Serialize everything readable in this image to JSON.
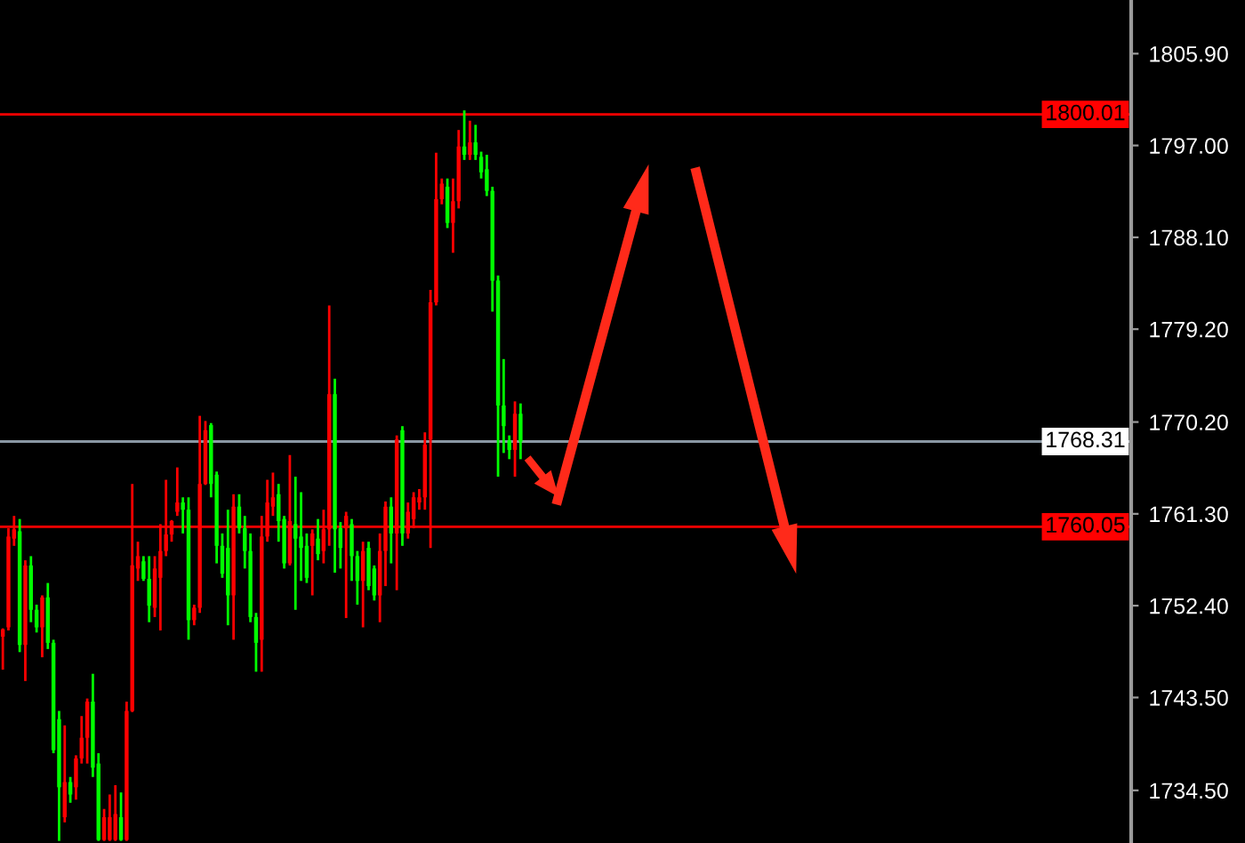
{
  "chart_data": {
    "type": "candlestick",
    "categories": [
      null,
      null,
      null,
      null,
      null,
      null,
      null,
      null,
      null,
      null,
      null,
      null,
      null,
      null,
      null,
      null,
      null,
      null,
      null,
      null,
      null,
      null,
      null,
      null,
      null,
      null,
      null,
      null,
      null,
      null,
      null,
      null,
      null,
      null,
      null,
      null,
      null,
      null,
      null,
      null,
      null,
      null,
      null,
      null,
      null,
      null,
      null,
      null,
      null,
      null,
      null,
      null,
      null,
      null,
      null,
      null,
      null,
      null,
      null,
      null,
      null,
      null,
      null,
      null,
      null,
      null,
      null,
      null,
      null,
      null,
      null,
      null,
      null,
      null,
      null,
      null,
      null,
      null,
      null,
      null,
      null,
      null,
      null,
      null,
      null,
      null,
      null,
      null,
      null,
      null,
      null,
      null,
      null,
      null,
      null,
      null,
      null,
      null,
      null,
      null,
      null,
      null,
      null,
      null,
      null,
      null,
      null,
      null,
      null,
      null,
      null,
      null,
      null,
      null,
      null,
      null,
      null,
      null,
      null,
      null,
      null,
      null,
      null,
      null,
      null,
      null,
      null,
      null,
      null,
      null,
      null,
      null,
      null,
      null,
      null,
      null,
      null,
      null,
      null,
      null,
      null,
      null,
      null,
      null,
      null,
      null,
      null,
      null,
      null,
      null,
      null,
      null,
      null,
      null,
      null,
      null,
      null,
      null,
      null,
      null,
      null,
      null,
      null,
      null,
      null,
      null,
      null,
      null,
      null,
      null,
      null,
      null,
      null,
      null,
      null,
      null,
      null,
      null,
      null,
      null,
      null,
      null,
      null,
      null,
      null,
      null,
      null,
      null,
      null,
      null,
      null,
      null,
      null,
      null,
      null,
      null,
      null,
      null,
      null,
      null,
      null
    ],
    "ohlc": [
      [
        1749.4,
        1750.2,
        1746.2,
        1750.1
      ],
      [
        1750.3,
        1759.9,
        1750.0,
        1759.1
      ],
      [
        1758.9,
        1761.1,
        1758.2,
        1759.8
      ],
      [
        1759.6,
        1760.8,
        1747.9,
        1748.6
      ],
      [
        1748.6,
        1756.8,
        1745.1,
        1756.3
      ],
      [
        1756.3,
        1757.2,
        1750.8,
        1752.0
      ],
      [
        1752.0,
        1752.5,
        1749.8,
        1750.3
      ],
      [
        1750.3,
        1753.4,
        1747.4,
        1753.2
      ],
      [
        1753.2,
        1754.6,
        1748.2,
        1748.8
      ],
      [
        1748.8,
        1749.1,
        1738.1,
        1738.4
      ],
      [
        1741.4,
        1742.2,
        1729.6,
        1734.8
      ],
      [
        1731.9,
        1740.8,
        1731.4,
        1735.3
      ],
      [
        1735.3,
        1735.8,
        1733.3,
        1734.1
      ],
      [
        1734.8,
        1737.9,
        1733.6,
        1737.6
      ],
      [
        1737.6,
        1741.7,
        1737.1,
        1739.6
      ],
      [
        1739.6,
        1743.4,
        1737.1,
        1743.1
      ],
      [
        1743.1,
        1745.8,
        1735.8,
        1736.7
      ],
      [
        1737.1,
        1738.1,
        1729.6,
        1729.7
      ],
      [
        1729.7,
        1732.7,
        1729.6,
        1731.9
      ],
      [
        1729.7,
        1734.1,
        1729.6,
        1731.9
      ],
      [
        1729.7,
        1735.0,
        1729.6,
        1732.2
      ],
      [
        1731.9,
        1734.3,
        1729.6,
        1729.7
      ],
      [
        1729.7,
        1743.1,
        1729.6,
        1742.2
      ],
      [
        1742.2,
        1764.2,
        1742.1,
        1756.3
      ],
      [
        1756.0,
        1758.6,
        1754.8,
        1757.2
      ],
      [
        1756.7,
        1757.2,
        1754.8,
        1755.0
      ],
      [
        1755.0,
        1757.2,
        1750.8,
        1752.4
      ],
      [
        1752.2,
        1757.2,
        1751.3,
        1756.0
      ],
      [
        1755.1,
        1760.3,
        1750.0,
        1757.7
      ],
      [
        1757.7,
        1764.6,
        1757.2,
        1759.3
      ],
      [
        1759.3,
        1760.7,
        1758.6,
        1760.6
      ],
      [
        1761.5,
        1765.8,
        1761.1,
        1762.4
      ],
      [
        1762.4,
        1762.9,
        1759.4,
        1761.7
      ],
      [
        1761.7,
        1762.9,
        1749.1,
        1751.0
      ],
      [
        1751.0,
        1752.5,
        1750.5,
        1752.2
      ],
      [
        1752.2,
        1770.8,
        1751.7,
        1764.2
      ],
      [
        1764.2,
        1770.3,
        1764.1,
        1769.4
      ],
      [
        1769.9,
        1770.1,
        1762.9,
        1764.2
      ],
      [
        1765.1,
        1765.4,
        1756.5,
        1758.2
      ],
      [
        1758.2,
        1759.4,
        1755.1,
        1755.5
      ],
      [
        1758.0,
        1761.7,
        1750.5,
        1753.4
      ],
      [
        1753.4,
        1763.2,
        1749.1,
        1762.0
      ],
      [
        1762.0,
        1763.2,
        1759.4,
        1759.9
      ],
      [
        1759.9,
        1761.1,
        1756.0,
        1757.7
      ],
      [
        1757.7,
        1759.4,
        1750.8,
        1751.3
      ],
      [
        1751.3,
        1751.7,
        1746.0,
        1748.8
      ],
      [
        1749.1,
        1761.1,
        1746.0,
        1759.1
      ],
      [
        1759.1,
        1764.6,
        1758.6,
        1762.4
      ],
      [
        1762.0,
        1765.3,
        1761.1,
        1762.9
      ],
      [
        1763.2,
        1764.2,
        1758.6,
        1760.6
      ],
      [
        1760.8,
        1761.1,
        1756.0,
        1756.5
      ],
      [
        1756.5,
        1767.0,
        1756.3,
        1760.6
      ],
      [
        1760.3,
        1764.9,
        1752.0,
        1758.9
      ],
      [
        1759.1,
        1763.4,
        1754.8,
        1758.0
      ],
      [
        1758.2,
        1759.4,
        1754.6,
        1755.1
      ],
      [
        1758.2,
        1759.8,
        1753.4,
        1759.4
      ],
      [
        1758.9,
        1760.8,
        1756.8,
        1757.4
      ],
      [
        1757.7,
        1761.7,
        1756.5,
        1759.8
      ],
      [
        1759.8,
        1781.5,
        1758.2,
        1772.9
      ],
      [
        1772.9,
        1774.4,
        1755.6,
        1759.8
      ],
      [
        1759.9,
        1760.5,
        1756.0,
        1758.0
      ],
      [
        1759.9,
        1761.5,
        1751.2,
        1761.1
      ],
      [
        1760.3,
        1760.8,
        1754.8,
        1757.2
      ],
      [
        1757.2,
        1757.7,
        1752.5,
        1754.8
      ],
      [
        1754.8,
        1758.6,
        1750.3,
        1757.7
      ],
      [
        1758.0,
        1758.6,
        1753.9,
        1754.3
      ],
      [
        1756.0,
        1756.3,
        1752.9,
        1753.4
      ],
      [
        1753.4,
        1759.4,
        1750.8,
        1757.7
      ],
      [
        1757.7,
        1762.5,
        1754.3,
        1762.0
      ],
      [
        1762.0,
        1762.9,
        1756.5,
        1759.4
      ],
      [
        1759.4,
        1768.9,
        1753.9,
        1768.5
      ],
      [
        1769.4,
        1769.8,
        1758.2,
        1759.4
      ],
      [
        1759.4,
        1762.4,
        1758.9,
        1761.5
      ],
      [
        1760.8,
        1763.4,
        1759.9,
        1762.9
      ],
      [
        1762.4,
        1763.7,
        1761.7,
        1762.9
      ],
      [
        1762.9,
        1769.2,
        1761.7,
        1768.0
      ],
      [
        1768.5,
        1783.0,
        1758.0,
        1781.8
      ],
      [
        1781.8,
        1796.3,
        1781.5,
        1791.8
      ],
      [
        1791.8,
        1793.8,
        1791.3,
        1793.3
      ],
      [
        1793.0,
        1793.8,
        1789.0,
        1789.5
      ],
      [
        1789.5,
        1793.8,
        1786.6,
        1791.6
      ],
      [
        1791.6,
        1798.5,
        1790.9,
        1796.9
      ],
      [
        1796.9,
        1800.4,
        1795.6,
        1796.1
      ],
      [
        1796.1,
        1799.4,
        1795.6,
        1797.3
      ],
      [
        1797.3,
        1799.0,
        1795.6,
        1796.1
      ],
      [
        1795.9,
        1796.4,
        1793.8,
        1794.4
      ],
      [
        1794.7,
        1796.1,
        1792.1,
        1792.6
      ],
      [
        1792.6,
        1793.0,
        1780.9,
        1783.9
      ],
      [
        1783.9,
        1784.4,
        1764.9,
        1771.8
      ],
      [
        1771.8,
        1776.3,
        1767.2,
        1769.8
      ],
      [
        1768.4,
        1768.9,
        1766.6,
        1767.5
      ],
      [
        1767.5,
        1772.2,
        1764.9,
        1771.0
      ],
      [
        1771.0,
        1772.0,
        1766.6,
        1768.3
      ],
      null,
      null,
      null,
      null,
      null,
      null,
      null,
      null,
      null,
      null,
      null,
      null,
      null,
      null,
      null,
      null,
      null,
      null,
      null,
      null,
      null,
      null,
      null,
      null,
      null,
      null,
      null,
      null,
      null,
      null,
      null,
      null,
      null,
      null,
      null,
      null,
      null,
      null,
      null,
      null,
      null,
      null,
      null,
      null,
      null,
      null,
      null,
      null,
      null,
      null,
      null,
      null,
      null,
      null,
      null,
      null,
      null,
      null,
      null,
      null,
      null,
      null,
      null,
      null,
      null,
      null,
      null,
      null,
      null,
      null,
      null,
      null,
      null,
      null,
      null,
      null,
      null,
      null,
      null,
      null,
      null,
      null,
      null,
      null,
      null,
      null,
      null,
      null,
      null,
      null,
      null,
      null,
      null,
      null,
      null,
      null,
      null,
      null,
      null,
      null,
      null,
      null,
      null,
      null,
      null,
      null,
      null,
      null
    ],
    "colors": [
      "#ff0000",
      "#ff0000",
      "#ff0000",
      "#00ff00",
      "#ff0000",
      "#00ff00",
      "#00ff00",
      "#ff0000",
      "#00ff00",
      "#00ff00",
      "#00ff00",
      "#ff0000",
      "#00ff00",
      "#ff0000",
      "#ff0000",
      "#ff0000",
      "#00ff00",
      "#00ff00",
      "#ff0000",
      "#ff0000",
      "#ff0000",
      "#00ff00",
      "#ff0000",
      "#ff0000",
      "#ff0000",
      "#00ff00",
      "#00ff00",
      "#ff0000",
      "#ff0000",
      "#ff0000",
      "#ff0000",
      "#ff0000",
      "#00ff00",
      "#00ff00",
      "#ff0000",
      "#ff0000",
      "#ff0000",
      "#00ff00",
      "#00ff00",
      "#00ff00",
      "#00ff00",
      "#ff0000",
      "#00ff00",
      "#00ff00",
      "#00ff00",
      "#00ff00",
      "#ff0000",
      "#ff0000",
      "#ff0000",
      "#00ff00",
      "#00ff00",
      "#ff0000",
      "#00ff00",
      "#00ff00",
      "#00ff00",
      "#ff0000",
      "#00ff00",
      "#ff0000",
      "#ff0000",
      "#00ff00",
      "#00ff00",
      "#ff0000",
      "#00ff00",
      "#00ff00",
      "#ff0000",
      "#00ff00",
      "#00ff00",
      "#ff0000",
      "#ff0000",
      "#00ff00",
      "#ff0000",
      "#00ff00",
      "#ff0000",
      "#ff0000",
      "#ff0000",
      "#ff0000",
      "#ff0000",
      "#ff0000",
      "#ff0000",
      "#00ff00",
      "#ff0000",
      "#ff0000",
      "#00ff00",
      "#ff0000",
      "#00ff00",
      "#00ff00",
      "#00ff00",
      "#00ff00",
      "#00ff00",
      "#00ff00",
      "#00ff00",
      "#ff0000",
      "#00ff00",
      null,
      null,
      null,
      null,
      null,
      null,
      null,
      null,
      null,
      null,
      null,
      null,
      null,
      null,
      null,
      null,
      null,
      null,
      null,
      null,
      null,
      null,
      null,
      null,
      null,
      null,
      null,
      null,
      null,
      null,
      null,
      null,
      null,
      null,
      null,
      null,
      null,
      null,
      null,
      null,
      null,
      null,
      null,
      null,
      null,
      null,
      null,
      null,
      null,
      null,
      null,
      null,
      null,
      null,
      null,
      null,
      null,
      null,
      null,
      null,
      null,
      null,
      null,
      null,
      null,
      null,
      null,
      null,
      null,
      null,
      null,
      null,
      null,
      null,
      null,
      null,
      null,
      null,
      null,
      null,
      null,
      null,
      null,
      null,
      null,
      null,
      null,
      null,
      null,
      null,
      null,
      null,
      null,
      null,
      null,
      null,
      null,
      null,
      null,
      null,
      null,
      null,
      null,
      null,
      null,
      null,
      null,
      null
    ],
    "ylim": [
      1729.4,
      1811.1
    ],
    "yticks": [
      {
        "value": 1805.9,
        "label": "1805.90"
      },
      {
        "value": 1797.0,
        "label": "1797.00"
      },
      {
        "value": 1788.1,
        "label": "1788.10"
      },
      {
        "value": 1779.2,
        "label": "1779.20"
      },
      {
        "value": 1770.2,
        "label": "1770.20"
      },
      {
        "value": 1761.3,
        "label": "1761.30"
      },
      {
        "value": 1752.4,
        "label": "1752.40"
      },
      {
        "value": 1743.5,
        "label": "1743.50"
      },
      {
        "value": 1734.5,
        "label": "1734.50"
      }
    ],
    "ref_lines": [
      {
        "axis": "y",
        "value": 1800.01,
        "label": "1800.01",
        "color": "#ff0000"
      },
      {
        "axis": "y",
        "value": 1768.31,
        "label": "1768.31",
        "color": "#8a97a3"
      },
      {
        "axis": "y",
        "value": 1760.05,
        "label": "1760.05",
        "color": "#ff0000"
      }
    ],
    "tick_labels": "y",
    "grid": false
  }
}
